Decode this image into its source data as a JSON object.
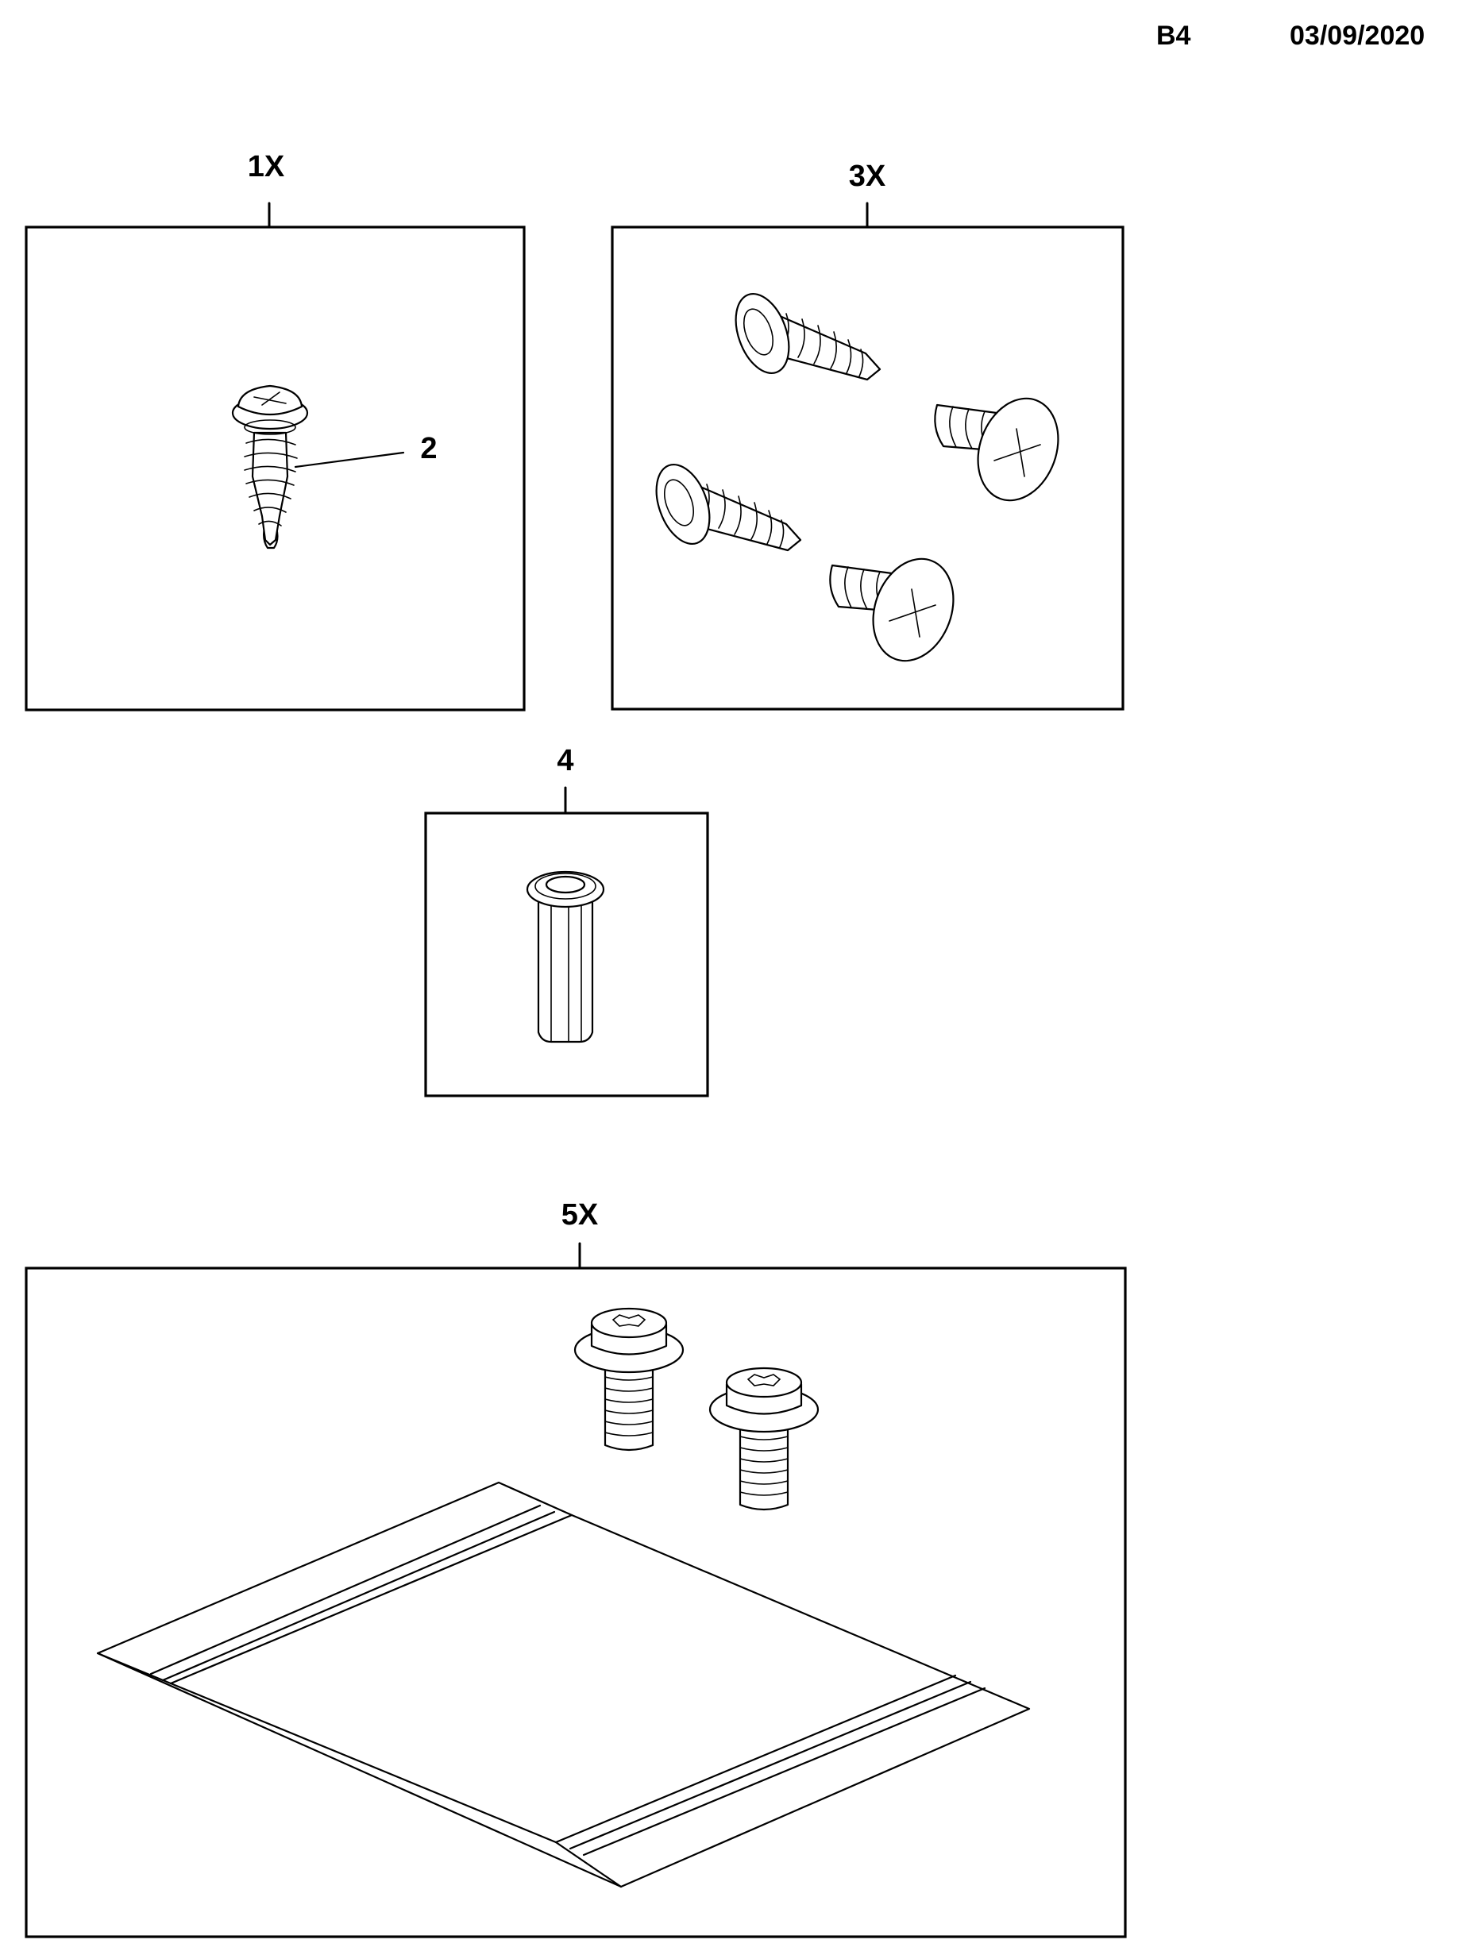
{
  "header": {
    "code": "B4",
    "date": "03/09/2020"
  },
  "groups": [
    {
      "id": "1",
      "label": "1X",
      "callouts": [
        "2"
      ],
      "part": "washer-head-self-tapping-screw"
    },
    {
      "id": "2",
      "label": "3X",
      "part": "self-tapping-and-truss-head-screws"
    },
    {
      "id": "3",
      "label": "4",
      "part": "rivet-nut"
    },
    {
      "id": "4",
      "label": "5X",
      "part": "torx-flange-bolts-and-floor-panel"
    }
  ],
  "colors": {
    "ink": "#000000",
    "paper": "#ffffff"
  }
}
